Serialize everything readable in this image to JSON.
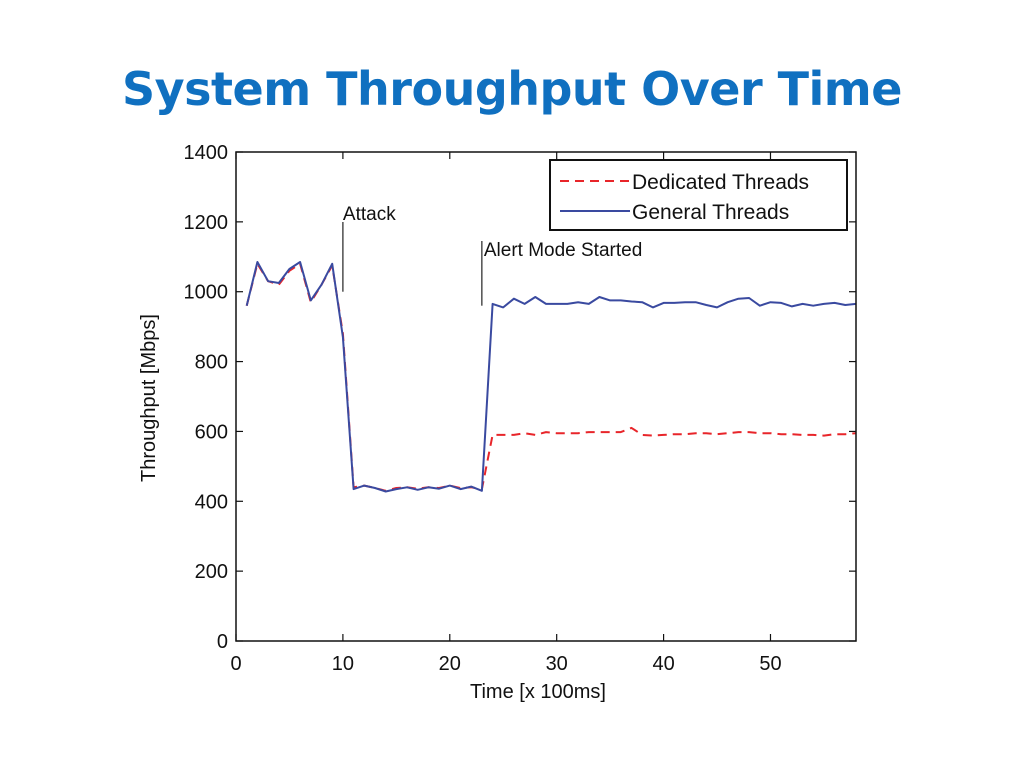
{
  "slide": {
    "title": "System Throughput Over Time"
  },
  "chart_data": {
    "type": "line",
    "title": "",
    "xlabel": "Time [x 100ms]",
    "ylabel": "Throughput [Mbps]",
    "xlim": [
      0,
      58
    ],
    "ylim": [
      0,
      1400
    ],
    "x_ticks": [
      0,
      10,
      20,
      30,
      40,
      50
    ],
    "y_ticks": [
      0,
      200,
      400,
      600,
      800,
      1000,
      1200,
      1400
    ],
    "grid": false,
    "legend_position": "top-right",
    "annotations": [
      {
        "text": "Attack",
        "x": 10
      },
      {
        "text": "Alert Mode Started",
        "x": 23
      }
    ],
    "series": [
      {
        "name": "Dedicated Threads",
        "color": "#e8252a",
        "style": "dashed",
        "x": [
          1,
          2,
          3,
          4,
          5,
          6,
          7,
          8,
          9,
          10,
          11,
          12,
          13,
          14,
          15,
          16,
          17,
          18,
          19,
          20,
          21,
          22,
          23,
          24,
          25,
          26,
          27,
          28,
          29,
          30,
          31,
          32,
          33,
          34,
          35,
          36,
          37,
          38,
          39,
          40,
          41,
          42,
          43,
          44,
          45,
          46,
          47,
          48,
          49,
          50,
          51,
          52,
          53,
          54,
          55,
          56,
          57,
          58
        ],
        "values": [
          960,
          1080,
          1030,
          1020,
          1060,
          1080,
          970,
          1020,
          1075,
          880,
          440,
          445,
          438,
          430,
          438,
          440,
          436,
          440,
          438,
          445,
          438,
          440,
          435,
          590,
          590,
          590,
          595,
          590,
          598,
          595,
          595,
          595,
          598,
          598,
          598,
          598,
          610,
          590,
          588,
          590,
          592,
          592,
          595,
          595,
          592,
          595,
          598,
          598,
          595,
          595,
          592,
          592,
          590,
          590,
          588,
          592,
          592,
          595
        ]
      },
      {
        "name": "General Threads",
        "color": "#3a4aa0",
        "style": "solid",
        "x": [
          1,
          2,
          3,
          4,
          5,
          6,
          7,
          8,
          9,
          10,
          11,
          12,
          13,
          14,
          15,
          16,
          17,
          18,
          19,
          20,
          21,
          22,
          23,
          24,
          25,
          26,
          27,
          28,
          29,
          30,
          31,
          32,
          33,
          34,
          35,
          36,
          37,
          38,
          39,
          40,
          41,
          42,
          43,
          44,
          45,
          46,
          47,
          48,
          49,
          50,
          51,
          52,
          53,
          54,
          55,
          56,
          57,
          58
        ],
        "values": [
          960,
          1085,
          1030,
          1025,
          1065,
          1085,
          975,
          1020,
          1080,
          870,
          435,
          445,
          438,
          428,
          435,
          440,
          433,
          440,
          436,
          445,
          435,
          442,
          430,
          965,
          955,
          980,
          965,
          985,
          965,
          965,
          965,
          970,
          965,
          985,
          975,
          975,
          972,
          970,
          955,
          968,
          968,
          970,
          970,
          962,
          955,
          970,
          980,
          982,
          960,
          970,
          968,
          958,
          965,
          960,
          965,
          968,
          962,
          965
        ]
      }
    ]
  }
}
